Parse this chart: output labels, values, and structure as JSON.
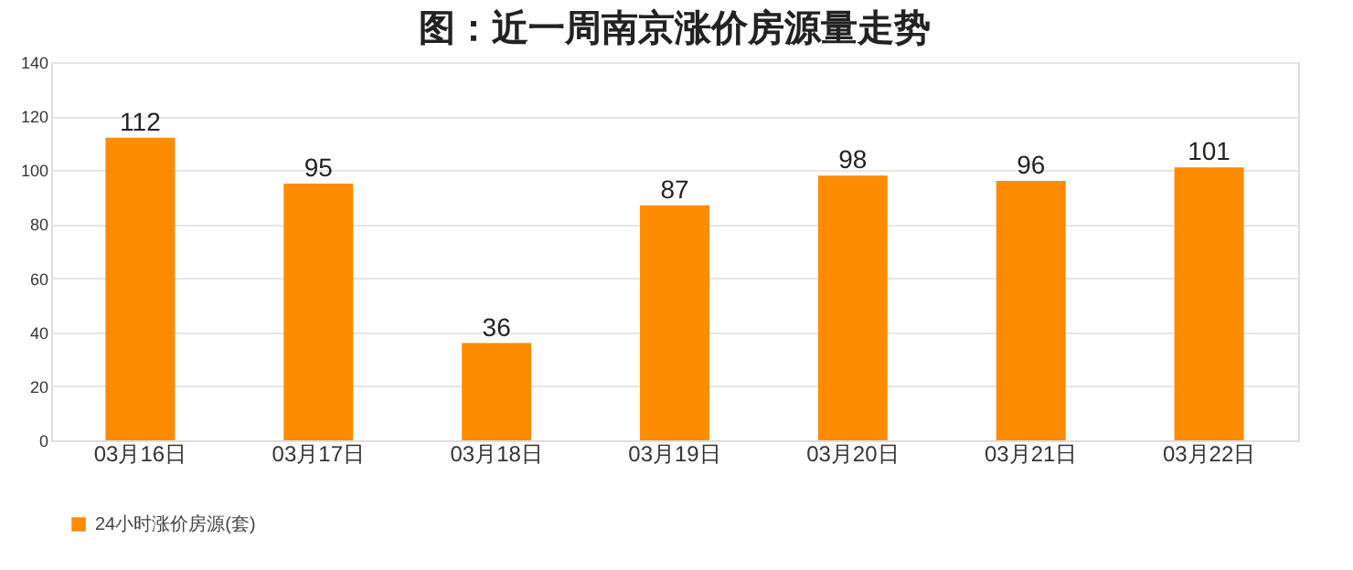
{
  "chart_data": {
    "type": "bar",
    "title": "图：近一周南京涨价房源量走势",
    "categories": [
      "03月16日",
      "03月17日",
      "03月18日",
      "03月19日",
      "03月20日",
      "03月21日",
      "03月22日"
    ],
    "series": [
      {
        "name": "24小时涨价房源(套)",
        "color": "#ff8c00",
        "values": [
          112,
          95,
          36,
          87,
          98,
          96,
          101
        ]
      }
    ],
    "ylim": [
      0,
      140
    ],
    "yticks": [
      0,
      20,
      40,
      60,
      80,
      100,
      120,
      140
    ],
    "grid": "y",
    "legend": "bottom",
    "data_labels": true
  }
}
